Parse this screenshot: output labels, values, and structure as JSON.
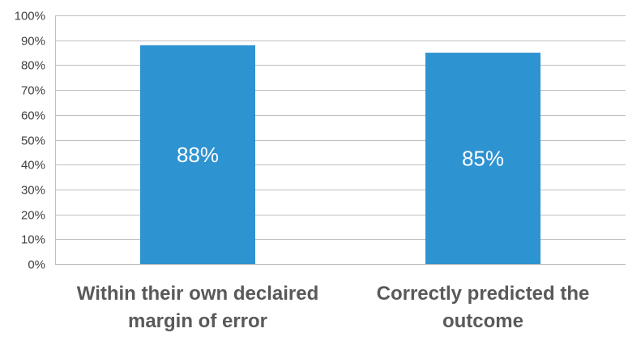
{
  "chart_data": {
    "type": "bar",
    "title": "",
    "xlabel": "",
    "ylabel": "",
    "categories": [
      [
        "Within their own declaired",
        "margin of error"
      ],
      [
        "Correctly predicted the",
        "outcome"
      ]
    ],
    "values": [
      88,
      85
    ],
    "data_labels": [
      "88%",
      "85%"
    ],
    "ylim": [
      0,
      100
    ],
    "yticks": [
      0,
      10,
      20,
      30,
      40,
      50,
      60,
      70,
      80,
      90,
      100
    ],
    "ytick_labels": [
      "0%",
      "10%",
      "20%",
      "30%",
      "40%",
      "50%",
      "60%",
      "70%",
      "80%",
      "90%",
      "100%"
    ],
    "grid": true,
    "legend": "none",
    "colors": {
      "bar": "#2E93D1",
      "grid": "#BFBFBF",
      "tick_text": "#404040",
      "category_text": "#595959",
      "data_label_text": "#FFFFFF"
    }
  }
}
